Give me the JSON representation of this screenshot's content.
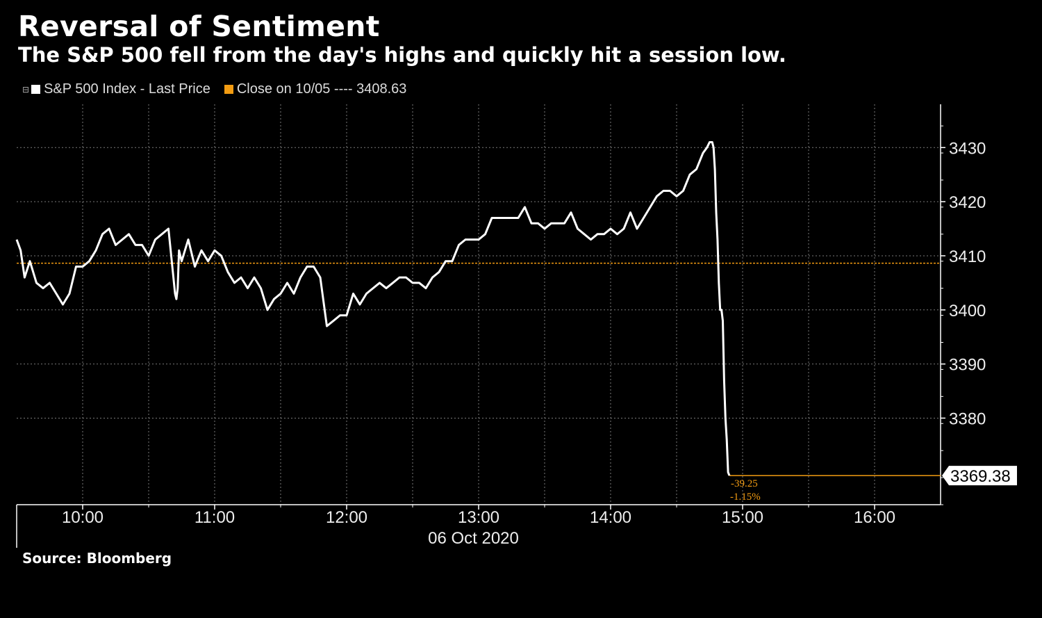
{
  "title": "Reversal of Sentiment",
  "subtitle": "The S&P 500 fell from the day's highs and quickly hit a session low.",
  "source": "Source: Bloomberg",
  "legend": [
    {
      "label": "S&P 500 Index - Last Price",
      "color": "#ffffff"
    },
    {
      "label": "Close on 10/05 ---- 3408.63",
      "color": "#f39c12"
    }
  ],
  "colors": {
    "line": "#ffffff",
    "reference": "#f39c12",
    "grid": "#8a8a8a",
    "background": "#000000"
  },
  "chart_data": {
    "type": "line",
    "title": "Reversal of Sentiment",
    "xlabel": "06 Oct 2020",
    "ylabel": "",
    "x_tick_labels": [
      "10:00",
      "11:00",
      "12:00",
      "13:00",
      "14:00",
      "15:00",
      "16:00"
    ],
    "x_tick_hours": [
      10,
      11,
      12,
      13,
      14,
      15,
      16
    ],
    "xlim": [
      9.5,
      16.5
    ],
    "y_ticks": [
      3380,
      3390,
      3400,
      3410,
      3420,
      3430
    ],
    "ylim": [
      3364,
      3438
    ],
    "reference_line": {
      "label": "Close on 10/05",
      "value": 3408.63
    },
    "last_value": 3369.38,
    "last_value_label": "3369.38",
    "change_label": "-39.25",
    "change_pct_label": "-1.15%",
    "series": [
      {
        "name": "S&P 500 Index - Last Price",
        "x": [
          9.5,
          9.53,
          9.56,
          9.6,
          9.65,
          9.7,
          9.75,
          9.8,
          9.85,
          9.9,
          9.95,
          10.0,
          10.05,
          10.1,
          10.15,
          10.2,
          10.25,
          10.3,
          10.35,
          10.4,
          10.45,
          10.5,
          10.55,
          10.6,
          10.65,
          10.7,
          10.71,
          10.72,
          10.73,
          10.75,
          10.8,
          10.85,
          10.9,
          10.95,
          11.0,
          11.05,
          11.1,
          11.15,
          11.2,
          11.25,
          11.3,
          11.35,
          11.4,
          11.45,
          11.5,
          11.55,
          11.6,
          11.65,
          11.7,
          11.75,
          11.8,
          11.85,
          11.9,
          11.95,
          12.0,
          12.05,
          12.1,
          12.15,
          12.2,
          12.25,
          12.3,
          12.35,
          12.4,
          12.45,
          12.5,
          12.55,
          12.6,
          12.65,
          12.7,
          12.75,
          12.8,
          12.85,
          12.9,
          12.95,
          13.0,
          13.05,
          13.1,
          13.15,
          13.2,
          13.25,
          13.3,
          13.35,
          13.4,
          13.45,
          13.5,
          13.55,
          13.6,
          13.65,
          13.7,
          13.75,
          13.8,
          13.85,
          13.9,
          13.95,
          14.0,
          14.05,
          14.1,
          14.15,
          14.2,
          14.25,
          14.3,
          14.35,
          14.4,
          14.45,
          14.5,
          14.55,
          14.6,
          14.65,
          14.7,
          14.73,
          14.75,
          14.77,
          14.78,
          14.79,
          14.8,
          14.81,
          14.82,
          14.83,
          14.84,
          14.85,
          14.86,
          14.87,
          14.88,
          14.89,
          14.9
        ],
        "values": [
          3413,
          3411,
          3406,
          3409,
          3405,
          3404,
          3405,
          3403,
          3401,
          3403,
          3408,
          3408,
          3409,
          3411,
          3414,
          3415,
          3412,
          3413,
          3414,
          3412,
          3412,
          3410,
          3413,
          3414,
          3415,
          3403,
          3402,
          3404,
          3411,
          3409,
          3413,
          3408,
          3411,
          3409,
          3411,
          3410,
          3407,
          3405,
          3406,
          3404,
          3406,
          3404,
          3400,
          3402,
          3403,
          3405,
          3403,
          3406,
          3408,
          3408,
          3406,
          3397,
          3398,
          3399,
          3399,
          3403,
          3401,
          3403,
          3404,
          3405,
          3404,
          3405,
          3406,
          3406,
          3405,
          3405,
          3404,
          3406,
          3407,
          3409,
          3409,
          3412,
          3413,
          3413,
          3413,
          3414,
          3417,
          3417,
          3417,
          3417,
          3417,
          3419,
          3416,
          3416,
          3415,
          3416,
          3416,
          3416,
          3418,
          3415,
          3414,
          3413,
          3414,
          3414,
          3415,
          3414,
          3415,
          3418,
          3415,
          3417,
          3419,
          3421,
          3422,
          3422,
          3421,
          3422,
          3425,
          3426,
          3429,
          3430,
          3431,
          3431,
          3430,
          3426,
          3418,
          3413,
          3405,
          3400,
          3400,
          3398,
          3387,
          3380,
          3376,
          3370,
          3369.38
        ]
      }
    ]
  }
}
